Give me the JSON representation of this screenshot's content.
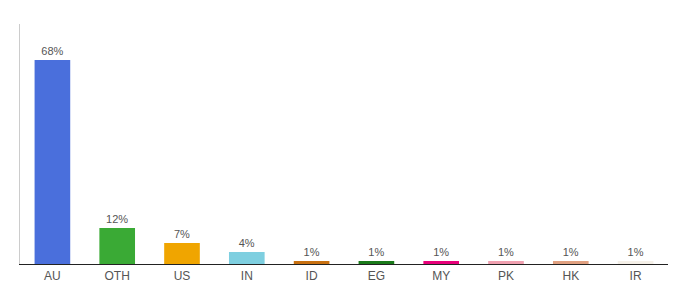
{
  "chart_data": {
    "type": "bar",
    "categories": [
      "AU",
      "OTH",
      "US",
      "IN",
      "ID",
      "EG",
      "MY",
      "PK",
      "HK",
      "IR"
    ],
    "values": [
      68,
      12,
      7,
      4,
      1,
      1,
      1,
      1,
      1,
      1
    ],
    "value_labels": [
      "68%",
      "12%",
      "7%",
      "4%",
      "1%",
      "1%",
      "1%",
      "1%",
      "1%",
      "1%"
    ],
    "colors": [
      "#4a6fdc",
      "#3aaa35",
      "#f0a500",
      "#7ecfe0",
      "#c87010",
      "#1a7a1a",
      "#e8007a",
      "#f0a0b0",
      "#e0a080",
      "#f5f0e8"
    ],
    "ylim": [
      0,
      80
    ],
    "grid": false,
    "data_labels": true,
    "tick_labels": "x"
  }
}
